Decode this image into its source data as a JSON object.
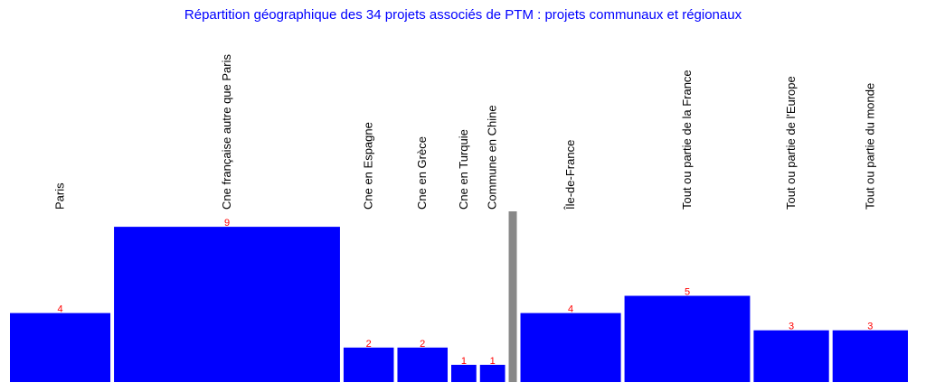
{
  "chart_data": {
    "type": "bar",
    "title": "Répartition géographique des 34 projets associés de PTM : projets communaux et régionaux",
    "categories": [
      "Paris",
      "Cne française autre que Paris",
      "Cne en Espagne",
      "Cne en Grèce",
      "Cne en Turquie",
      "Commune en Chine",
      "Île-de-France",
      "Tout ou partie de la France",
      "Tout ou partie de l'Europe",
      "Tout ou partie du monde"
    ],
    "values": [
      4,
      9,
      2,
      2,
      1,
      1,
      4,
      5,
      3,
      3
    ],
    "groups": [
      "communaux",
      "communaux",
      "communaux",
      "communaux",
      "communaux",
      "communaux",
      "régionaux",
      "régionaux",
      "régionaux",
      "régionaux"
    ],
    "bar_width_units": [
      4,
      9,
      2,
      2,
      1,
      1,
      4,
      5,
      3,
      3
    ],
    "colors": {
      "bar": "#0000ff",
      "value_label": "#ff0000",
      "title": "#0000ff",
      "category_label": "#000000",
      "separator": "#888888"
    },
    "grid": false,
    "legend": "none"
  }
}
